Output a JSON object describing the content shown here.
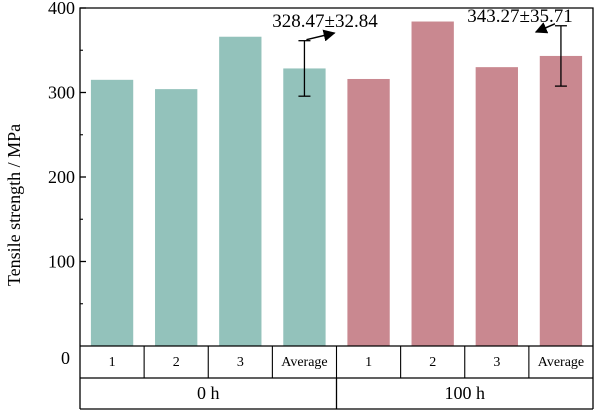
{
  "chart_data": {
    "type": "bar",
    "ylabel": "Tensile strength / MPa",
    "ylim": [
      0,
      400
    ],
    "yticks": [
      0,
      100,
      200,
      300,
      400
    ],
    "grid": false,
    "groups": [
      {
        "label": "0 h",
        "color": "#93c2bb",
        "bars": [
          {
            "label": "1",
            "value": 315
          },
          {
            "label": "2",
            "value": 304
          },
          {
            "label": "3",
            "value": 366
          },
          {
            "label": "Average",
            "value": 328.47,
            "error": 32.84
          }
        ],
        "annotation": "328.47±32.84"
      },
      {
        "label": "100 h",
        "color": "#c98890",
        "bars": [
          {
            "label": "1",
            "value": 316
          },
          {
            "label": "2",
            "value": 384
          },
          {
            "label": "3",
            "value": 330
          },
          {
            "label": "Average",
            "value": 343.27,
            "error": 35.71
          }
        ],
        "annotation": "343.27±35.71"
      }
    ]
  }
}
